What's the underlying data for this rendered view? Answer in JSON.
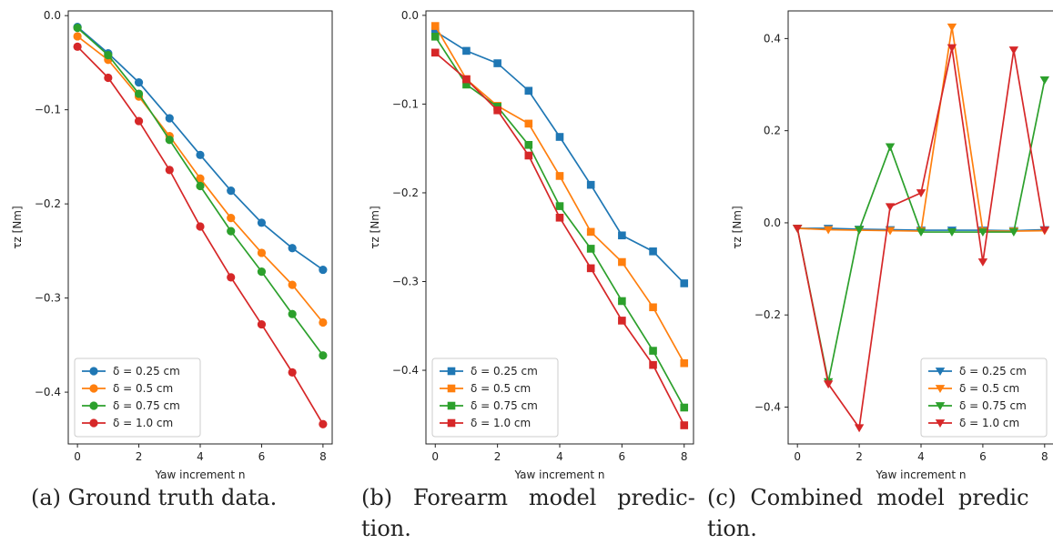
{
  "colors": {
    "blue": "#1f77b4",
    "orange": "#ff7f0e",
    "green": "#2ca02c",
    "red": "#d62728"
  },
  "captions": {
    "a": "(a) Ground truth data.",
    "b_line1": "(b)   Forearm   model   predic-",
    "b_line2": "tion.",
    "c_line1": "(c)  Combined  model  predic",
    "c_line2": "tion."
  },
  "chart_data": [
    {
      "type": "line",
      "marker": "circle",
      "xlabel": "Yaw increment n",
      "ylabel": "τz [Nm]",
      "x": [
        0,
        1,
        2,
        3,
        4,
        5,
        6,
        7,
        8
      ],
      "xticks": [
        "0",
        "2",
        "4",
        "6",
        "8"
      ],
      "yticks": [
        "0.0",
        "−0.1",
        "−0.2",
        "−0.3",
        "−0.4"
      ],
      "xlim": [
        -0.3,
        8.3
      ],
      "ylim": [
        -0.455,
        0.005
      ],
      "legend_position": "lower-left",
      "series": [
        {
          "name": "δ = 0.25 cm",
          "color": "#1f77b4",
          "values": [
            -0.012,
            -0.04,
            -0.071,
            -0.109,
            -0.148,
            -0.186,
            -0.22,
            -0.247,
            -0.27
          ]
        },
        {
          "name": "δ = 0.5 cm",
          "color": "#ff7f0e",
          "values": [
            -0.022,
            -0.047,
            -0.086,
            -0.128,
            -0.173,
            -0.215,
            -0.252,
            -0.286,
            -0.326
          ]
        },
        {
          "name": "δ = 0.75 cm",
          "color": "#2ca02c",
          "values": [
            -0.013,
            -0.042,
            -0.083,
            -0.132,
            -0.181,
            -0.229,
            -0.272,
            -0.317,
            -0.361
          ]
        },
        {
          "name": "δ = 1.0 cm",
          "color": "#d62728",
          "values": [
            -0.033,
            -0.066,
            -0.112,
            -0.164,
            -0.224,
            -0.278,
            -0.328,
            -0.379,
            -0.434
          ]
        }
      ]
    },
    {
      "type": "line",
      "marker": "square",
      "xlabel": "Yaw increment n",
      "ylabel": "τz [Nm]",
      "x": [
        0,
        1,
        2,
        3,
        4,
        5,
        6,
        7,
        8
      ],
      "xticks": [
        "0",
        "2",
        "4",
        "6",
        "8"
      ],
      "yticks": [
        "0.0",
        "−0.1",
        "−0.2",
        "−0.3",
        "−0.4"
      ],
      "xlim": [
        -0.3,
        8.3
      ],
      "ylim": [
        -0.483,
        0.005
      ],
      "legend_position": "lower-left",
      "series": [
        {
          "name": "δ = 0.25 cm",
          "color": "#1f77b4",
          "values": [
            -0.018,
            -0.04,
            -0.054,
            -0.085,
            -0.137,
            -0.191,
            -0.248,
            -0.266,
            -0.302
          ]
        },
        {
          "name": "δ = 0.5 cm",
          "color": "#ff7f0e",
          "values": [
            -0.012,
            -0.072,
            -0.102,
            -0.122,
            -0.181,
            -0.244,
            -0.278,
            -0.329,
            -0.392
          ]
        },
        {
          "name": "δ = 0.75 cm",
          "color": "#2ca02c",
          "values": [
            -0.024,
            -0.078,
            -0.103,
            -0.146,
            -0.215,
            -0.263,
            -0.322,
            -0.378,
            -0.442
          ]
        },
        {
          "name": "δ = 1.0 cm",
          "color": "#d62728",
          "values": [
            -0.042,
            -0.072,
            -0.107,
            -0.158,
            -0.228,
            -0.285,
            -0.344,
            -0.394,
            -0.462
          ]
        }
      ]
    },
    {
      "type": "line",
      "marker": "triangle-down",
      "xlabel": "Yaw increment n",
      "ylabel": "τz [Nm]",
      "x": [
        0,
        1,
        2,
        3,
        4,
        5,
        6,
        7,
        8
      ],
      "xticks": [
        "0",
        "2",
        "4",
        "6",
        "8"
      ],
      "yticks": [
        "0.4",
        "0.2",
        "0.0",
        "−0.2",
        "−0.4"
      ],
      "xlim": [
        -0.3,
        8.3
      ],
      "ylim": [
        -0.48,
        0.46
      ],
      "legend_position": "lower-right",
      "series": [
        {
          "name": "δ = 0.25 cm",
          "color": "#1f77b4",
          "values": [
            -0.012,
            -0.012,
            -0.014,
            -0.015,
            -0.016,
            -0.016,
            -0.016,
            -0.017,
            -0.015
          ]
        },
        {
          "name": "δ = 0.5 cm",
          "color": "#ff7f0e",
          "values": [
            -0.012,
            -0.015,
            -0.016,
            -0.017,
            -0.018,
            0.425,
            -0.018,
            -0.018,
            -0.017
          ]
        },
        {
          "name": "δ = 0.75 cm",
          "color": "#2ca02c",
          "values": [
            -0.012,
            -0.345,
            -0.015,
            0.165,
            -0.02,
            -0.02,
            -0.02,
            -0.02,
            0.31
          ]
        },
        {
          "name": "δ = 1.0 cm",
          "color": "#d62728",
          "values": [
            -0.012,
            -0.35,
            -0.445,
            0.035,
            0.065,
            0.38,
            -0.085,
            0.375,
            -0.016
          ]
        }
      ]
    }
  ]
}
